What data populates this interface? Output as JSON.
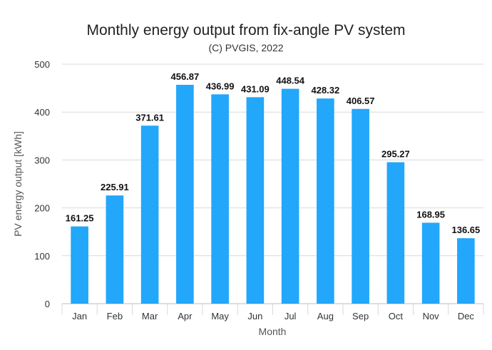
{
  "chart_data": {
    "type": "bar",
    "title": "Monthly energy output from fix-angle PV system",
    "subtitle": "(C) PVGIS, 2022",
    "xlabel": "Month",
    "ylabel": "PV energy output [kWh]",
    "categories": [
      "Jan",
      "Feb",
      "Mar",
      "Apr",
      "May",
      "Jun",
      "Jul",
      "Aug",
      "Sep",
      "Oct",
      "Nov",
      "Dec"
    ],
    "values": [
      161.25,
      225.91,
      371.61,
      456.87,
      436.99,
      431.09,
      448.54,
      428.32,
      406.57,
      295.27,
      168.95,
      136.65
    ],
    "value_labels": [
      "161.25",
      "225.91",
      "371.61",
      "456.87",
      "436.99",
      "431.09",
      "448.54",
      "428.32",
      "406.57",
      "295.27",
      "168.95",
      "136.65"
    ],
    "ylim": [
      0,
      500
    ],
    "yticks": [
      0,
      100,
      200,
      300,
      400,
      500
    ],
    "grid": true,
    "bar_color": "#22a7fa",
    "grid_color": "#d9d9d9",
    "axis_color": "#bdbdbd"
  }
}
